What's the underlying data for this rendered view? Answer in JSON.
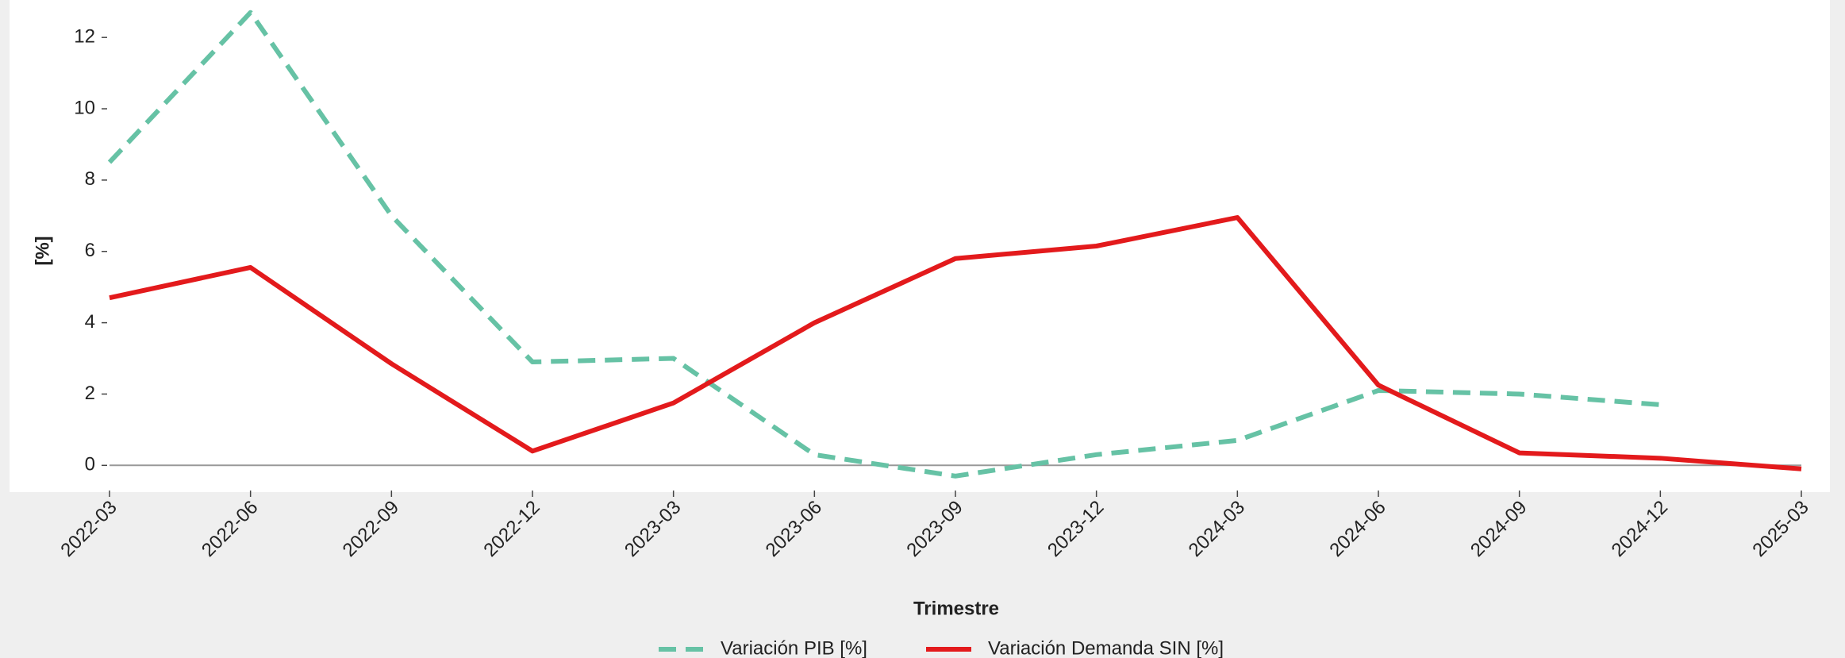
{
  "chart_data": {
    "type": "line",
    "x": [
      "2022-03",
      "2022-06",
      "2022-09",
      "2022-12",
      "2023-03",
      "2023-06",
      "2023-09",
      "2023-12",
      "2024-03",
      "2024-06",
      "2024-09",
      "2024-12",
      "2025-03"
    ],
    "series": [
      {
        "name": "Variación PIB [%]",
        "color": "#66c2a5",
        "dashed": true,
        "values": [
          8.5,
          12.7,
          7.0,
          2.9,
          3.0,
          0.3,
          -0.3,
          0.3,
          0.7,
          2.1,
          2.0,
          1.7,
          null
        ]
      },
      {
        "name": "Variación Demanda SIN [%]",
        "color": "#e31a1c",
        "dashed": false,
        "values": [
          4.7,
          5.55,
          2.85,
          0.4,
          1.75,
          4.0,
          5.8,
          6.15,
          6.95,
          2.25,
          0.35,
          0.2,
          -0.1
        ]
      }
    ],
    "xlabel": "Trimestre",
    "ylabel": "[%]",
    "ylim": [
      -0.75,
      13.05
    ],
    "yticks": [
      0,
      2,
      4,
      6,
      8,
      10,
      12
    ],
    "zero_line": true,
    "legend": "bottom"
  }
}
